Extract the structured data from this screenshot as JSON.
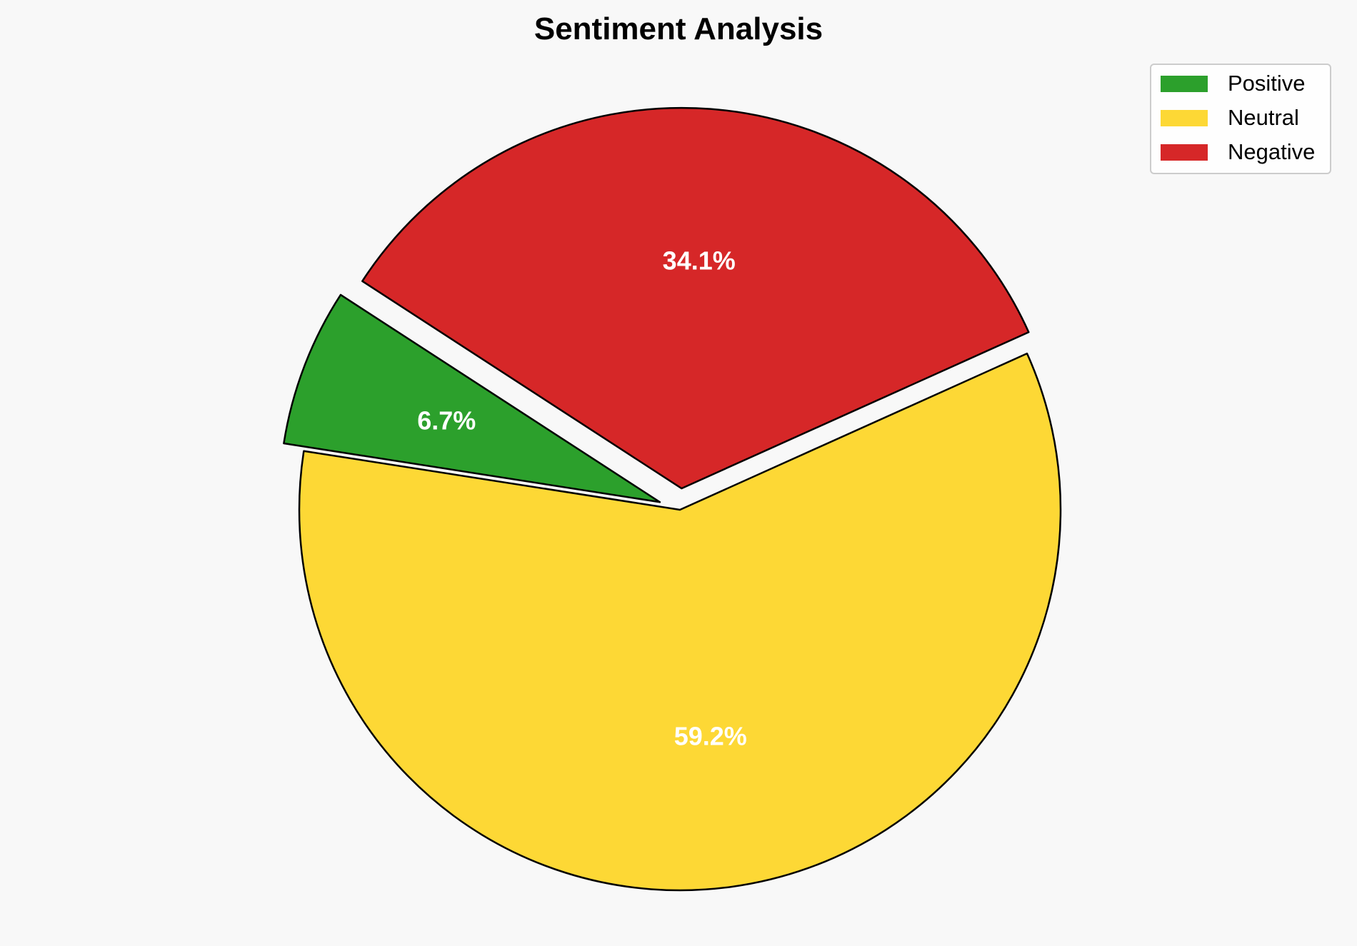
{
  "chart_data": {
    "type": "pie",
    "title": "Sentiment Analysis",
    "categories": [
      "Positive",
      "Neutral",
      "Negative"
    ],
    "values": [
      6.7,
      59.2,
      34.1
    ],
    "labels": [
      "6.7%",
      "59.2%",
      "34.1%"
    ],
    "colors": [
      "#2ca02c",
      "#fdd835",
      "#d62728"
    ],
    "exploded": [
      true,
      false,
      true
    ],
    "legend": "top-right",
    "grid": false
  }
}
